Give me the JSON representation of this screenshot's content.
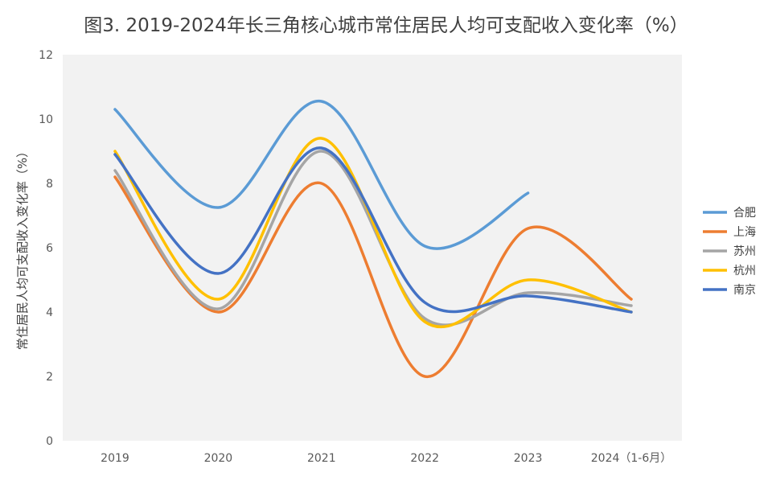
{
  "chart_data": {
    "type": "line",
    "title": "图3. 2019-2024年长三角核心城市常住居民人均可支配收入变化率（%）",
    "xlabel": "",
    "ylabel": "常住居民人均可支配收入变化率（%）",
    "categories": [
      "2019",
      "2020",
      "2021",
      "2022",
      "2023",
      "2024（1-6月）"
    ],
    "ylim": [
      0,
      12
    ],
    "yticks": [
      0,
      2,
      4,
      6,
      8,
      10,
      12
    ],
    "grid": false,
    "smooth": true,
    "legend_position": "right",
    "series": [
      {
        "name": "合肥",
        "color": "#5b9bd5",
        "values": [
          10.3,
          7.25,
          10.55,
          6.05,
          7.7,
          null
        ]
      },
      {
        "name": "上海",
        "color": "#ed7d31",
        "values": [
          8.2,
          4.0,
          8.0,
          2.0,
          6.6,
          4.4
        ]
      },
      {
        "name": "苏州",
        "color": "#a5a5a5",
        "values": [
          8.4,
          4.1,
          9.0,
          3.8,
          4.6,
          4.2
        ]
      },
      {
        "name": "杭州",
        "color": "#ffc000",
        "values": [
          9.0,
          4.4,
          9.4,
          3.7,
          5.0,
          4.0
        ]
      },
      {
        "name": "南京",
        "color": "#4472c4",
        "values": [
          8.9,
          5.2,
          9.1,
          4.3,
          4.5,
          4.0
        ]
      }
    ]
  }
}
